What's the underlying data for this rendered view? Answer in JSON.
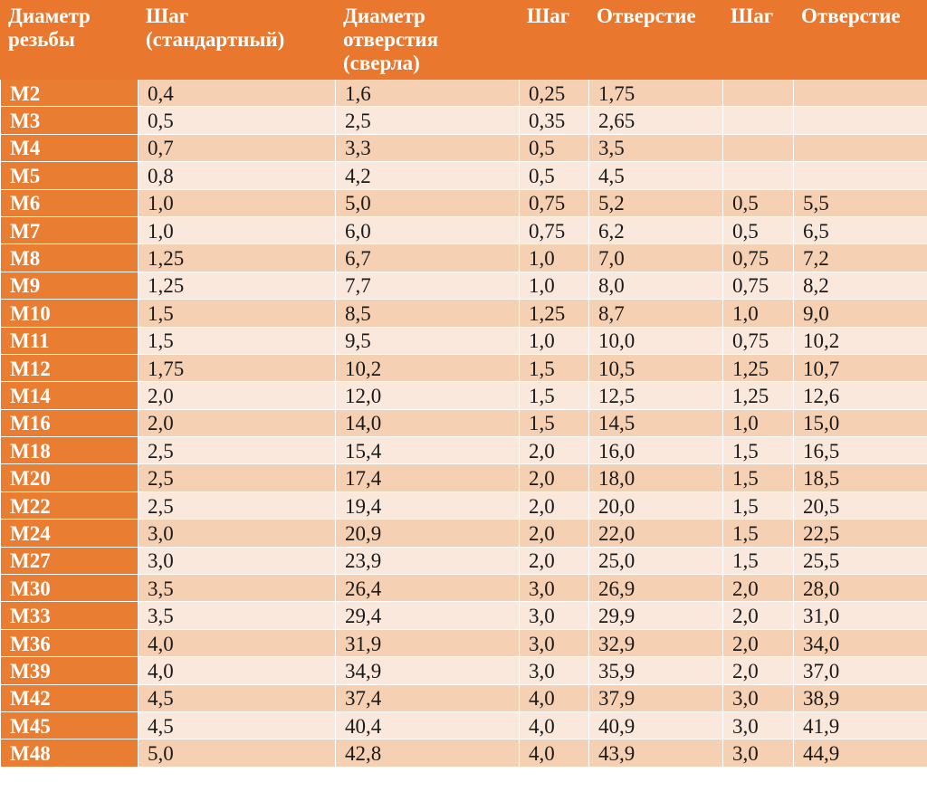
{
  "headers": [
    [
      "Диаметр",
      "резьбы"
    ],
    [
      "Шаг",
      "(стандартный)"
    ],
    [
      "Диаметр",
      "отверстия",
      "(сверла)"
    ],
    [
      "Шаг"
    ],
    [
      "Отверстие"
    ],
    [
      "Шаг"
    ],
    [
      "Отверстие"
    ]
  ],
  "rows": [
    [
      "М2",
      "0,4",
      "1,6",
      "0,25",
      "1,75",
      "",
      ""
    ],
    [
      "М3",
      "0,5",
      "2,5",
      "0,35",
      "2,65",
      "",
      ""
    ],
    [
      "М4",
      "0,7",
      "3,3",
      "0,5",
      "3,5",
      "",
      ""
    ],
    [
      "М5",
      "0,8",
      "4,2",
      "0,5",
      "4,5",
      "",
      ""
    ],
    [
      "М6",
      "1,0",
      "5,0",
      "0,75",
      "5,2",
      "0,5",
      "5,5"
    ],
    [
      "М7",
      "1,0",
      "6,0",
      "0,75",
      "6,2",
      "0,5",
      "6,5"
    ],
    [
      "М8",
      "1,25",
      "6,7",
      "1,0",
      "7,0",
      "0,75",
      "7,2"
    ],
    [
      "М9",
      "1,25",
      "7,7",
      "1,0",
      "8,0",
      "0,75",
      "8,2"
    ],
    [
      "М10",
      "1,5",
      "8,5",
      "1,25",
      "8,7",
      "1,0",
      "9,0"
    ],
    [
      "М11",
      "1,5",
      "9,5",
      "1,0",
      "10,0",
      "0,75",
      "10,2"
    ],
    [
      "М12",
      "1,75",
      "10,2",
      "1,5",
      "10,5",
      "1,25",
      "10,7"
    ],
    [
      "М14",
      "2,0",
      "12,0",
      "1,5",
      "12,5",
      "1,25",
      "12,6"
    ],
    [
      "М16",
      "2,0",
      "14,0",
      "1,5",
      "14,5",
      "1,0",
      "15,0"
    ],
    [
      "М18",
      "2,5",
      "15,4",
      "2,0",
      "16,0",
      "1,5",
      "16,5"
    ],
    [
      "М20",
      "2,5",
      "17,4",
      "2,0",
      "18,0",
      "1,5",
      "18,5"
    ],
    [
      "М22",
      "2,5",
      "19,4",
      "2,0",
      "20,0",
      "1,5",
      "20,5"
    ],
    [
      "М24",
      "3,0",
      "20,9",
      "2,0",
      "22,0",
      "1,5",
      "22,5"
    ],
    [
      "М27",
      "3,0",
      "23,9",
      "2,0",
      "25,0",
      "1,5",
      "25,5"
    ],
    [
      "М30",
      "3,5",
      "26,4",
      "3,0",
      "26,9",
      "2,0",
      "28,0"
    ],
    [
      "М33",
      "3,5",
      "29,4",
      "3,0",
      "29,9",
      "2,0",
      "31,0"
    ],
    [
      "М36",
      "4,0",
      "31,9",
      "3,0",
      "32,9",
      "2,0",
      "34,0"
    ],
    [
      "М39",
      "4,0",
      "34,9",
      "3,0",
      "35,9",
      "2,0",
      "37,0"
    ],
    [
      "М42",
      "4,5",
      "37,4",
      "4,0",
      "37,9",
      "3,0",
      "38,9"
    ],
    [
      "М45",
      "4,5",
      "40,4",
      "4,0",
      "40,9",
      "3,0",
      "41,9"
    ],
    [
      "М48",
      "5,0",
      "42,8",
      "4,0",
      "43,9",
      "3,0",
      "44,9"
    ]
  ],
  "colors": {
    "header_bg": "#e9782e",
    "label_bg": "#e97d32",
    "row_dark": "#f6d0b3",
    "row_light": "#fbe8dc"
  }
}
